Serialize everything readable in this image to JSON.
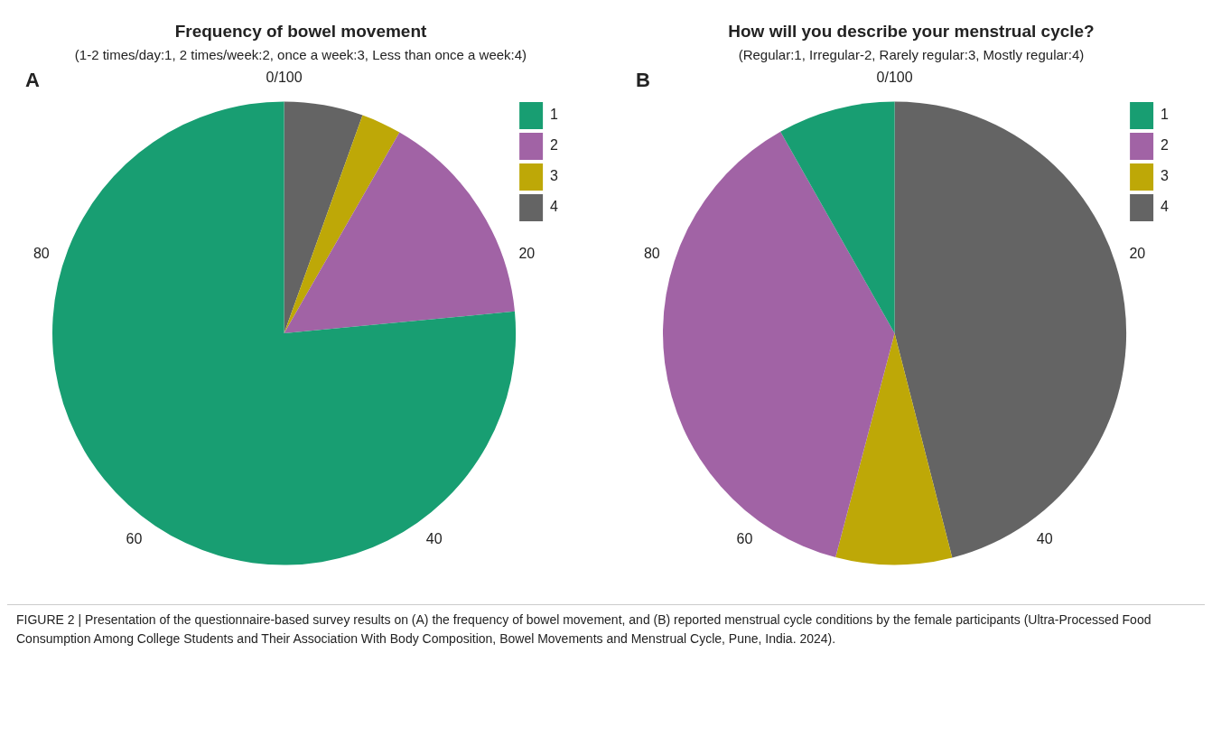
{
  "chart_data": [
    {
      "type": "pie",
      "title": "Frequency of bowel movement",
      "subtitle": "(1-2 times/day:1, 2 times/week:2, once a week:3, Less than once a week:4)",
      "categories": [
        "1",
        "2",
        "3",
        "4"
      ],
      "values": [
        76.5,
        15.2,
        2.8,
        5.5
      ],
      "colors": [
        "#189e72",
        "#a163a5",
        "#bea807",
        "#646464"
      ],
      "legend": "top right",
      "annotations": [
        "A",
        "0/100",
        "20",
        "40",
        "60",
        "80"
      ]
    },
    {
      "type": "pie",
      "title": "How will you describe your menstrual cycle?",
      "subtitle": "(Regular:1, Irregular-2, Rarely regular:3, Mostly regular:4)",
      "categories": [
        "1",
        "2",
        "3",
        "4"
      ],
      "values": [
        8.2,
        37.7,
        8.1,
        46.0
      ],
      "colors": [
        "#189e72",
        "#a163a5",
        "#bea807",
        "#646464"
      ],
      "legend": "top right",
      "annotations": [
        "B",
        "0/100",
        "20",
        "40",
        "60",
        "80"
      ]
    },
    {
      "type": "other",
      "title": "FIGURE 2 | Presentation of the questionnaire-based survey results on (A) the frequency of bowel movement, and (B) reported menstrual cycle conditions by the female participants (Ultra-Processed Food Consumption Among College Students and Their Association With Body Composition, Bowel Movements and Menstrual Cycle, Pune, India. 2024)."
    }
  ]
}
